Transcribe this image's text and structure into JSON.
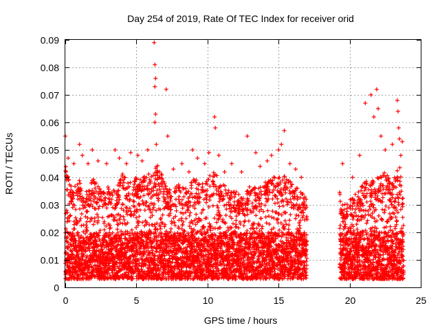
{
  "chart_data": {
    "type": "scatter",
    "title": "Day 254 of 2019, Rate Of TEC Index for receiver orid",
    "xlabel": "GPS time / hours",
    "ylabel": "ROTI / TECUs",
    "xlim": [
      0,
      25
    ],
    "ylim": [
      0,
      0.09
    ],
    "x_ticks": [
      "0",
      "5",
      "10",
      "15",
      "20",
      "25"
    ],
    "y_ticks": [
      "0",
      "0.01",
      "0.02",
      "0.03",
      "0.04",
      "0.05",
      "0.06",
      "0.07",
      "0.08",
      "0.09"
    ],
    "x_tick_values": [
      0,
      5,
      10,
      15,
      20,
      25
    ],
    "y_tick_values": [
      0,
      0.01,
      0.02,
      0.03,
      0.04,
      0.05,
      0.06,
      0.07,
      0.08,
      0.09
    ],
    "grid": true,
    "marker": "+",
    "color": "#ff0000",
    "data_gap_hours": [
      17.0,
      19.3
    ],
    "series": [
      {
        "name": "ROTI",
        "segments": [
          {
            "x_start": 0.0,
            "x_end": 17.0,
            "step": 0.0083,
            "baseline": [
              0.003,
              0.02
            ]
          },
          {
            "x_start": 19.3,
            "x_end": 23.8,
            "step": 0.0083,
            "baseline": [
              0.003,
              0.02
            ]
          }
        ],
        "envelope_x": [
          0.0,
          0.5,
          1.0,
          1.5,
          2.0,
          2.5,
          3.0,
          3.5,
          4.0,
          4.5,
          5.0,
          5.5,
          6.0,
          6.5,
          7.0,
          7.5,
          8.0,
          8.5,
          9.0,
          9.5,
          10.0,
          10.5,
          11.0,
          11.5,
          12.0,
          12.5,
          13.0,
          13.5,
          14.0,
          14.5,
          15.0,
          15.5,
          16.0,
          16.5,
          17.0,
          19.3,
          19.5,
          20.0,
          20.5,
          21.0,
          21.5,
          22.0,
          22.5,
          23.0,
          23.5,
          23.8
        ],
        "envelope_y": [
          0.045,
          0.035,
          0.04,
          0.035,
          0.04,
          0.035,
          0.038,
          0.035,
          0.042,
          0.038,
          0.04,
          0.04,
          0.042,
          0.045,
          0.038,
          0.035,
          0.038,
          0.036,
          0.04,
          0.038,
          0.04,
          0.042,
          0.038,
          0.036,
          0.035,
          0.033,
          0.037,
          0.036,
          0.038,
          0.04,
          0.042,
          0.04,
          0.038,
          0.035,
          0.033,
          0.035,
          0.03,
          0.032,
          0.035,
          0.038,
          0.04,
          0.04,
          0.042,
          0.038,
          0.045,
          0.03
        ],
        "spikes": [
          [
            0.0,
            0.055
          ],
          [
            0.2,
            0.047
          ],
          [
            0.6,
            0.045
          ],
          [
            1.0,
            0.052
          ],
          [
            1.2,
            0.048
          ],
          [
            1.6,
            0.045
          ],
          [
            1.9,
            0.05
          ],
          [
            2.3,
            0.046
          ],
          [
            2.9,
            0.045
          ],
          [
            3.5,
            0.05
          ],
          [
            3.8,
            0.047
          ],
          [
            4.3,
            0.045
          ],
          [
            4.6,
            0.049
          ],
          [
            5.1,
            0.048
          ],
          [
            5.4,
            0.046
          ],
          [
            5.8,
            0.05
          ],
          [
            6.25,
            0.089
          ],
          [
            6.3,
            0.081
          ],
          [
            6.35,
            0.076
          ],
          [
            6.3,
            0.073
          ],
          [
            6.35,
            0.063
          ],
          [
            6.3,
            0.06
          ],
          [
            6.4,
            0.052
          ],
          [
            7.1,
            0.072
          ],
          [
            7.2,
            0.055
          ],
          [
            7.6,
            0.043
          ],
          [
            8.2,
            0.045
          ],
          [
            8.7,
            0.042
          ],
          [
            8.95,
            0.05
          ],
          [
            9.3,
            0.047
          ],
          [
            9.8,
            0.045
          ],
          [
            10.1,
            0.049
          ],
          [
            10.5,
            0.062
          ],
          [
            10.55,
            0.058
          ],
          [
            10.8,
            0.048
          ],
          [
            11.2,
            0.042
          ],
          [
            11.7,
            0.045
          ],
          [
            12.4,
            0.042
          ],
          [
            12.8,
            0.055
          ],
          [
            13.4,
            0.049
          ],
          [
            13.7,
            0.044
          ],
          [
            14.2,
            0.046
          ],
          [
            14.5,
            0.048
          ],
          [
            15.0,
            0.05
          ],
          [
            15.2,
            0.052
          ],
          [
            15.4,
            0.057
          ],
          [
            15.8,
            0.045
          ],
          [
            16.2,
            0.043
          ],
          [
            16.6,
            0.04
          ],
          [
            19.5,
            0.045
          ],
          [
            20.2,
            0.04
          ],
          [
            20.7,
            0.048
          ],
          [
            21.1,
            0.067
          ],
          [
            21.5,
            0.07
          ],
          [
            21.7,
            0.062
          ],
          [
            21.9,
            0.072
          ],
          [
            22.0,
            0.065
          ],
          [
            22.2,
            0.055
          ],
          [
            22.5,
            0.05
          ],
          [
            23.0,
            0.052
          ],
          [
            23.35,
            0.068
          ],
          [
            23.4,
            0.064
          ],
          [
            23.45,
            0.058
          ],
          [
            23.5,
            0.054
          ],
          [
            23.6,
            0.048
          ],
          [
            23.7,
            0.053
          ]
        ]
      }
    ]
  }
}
